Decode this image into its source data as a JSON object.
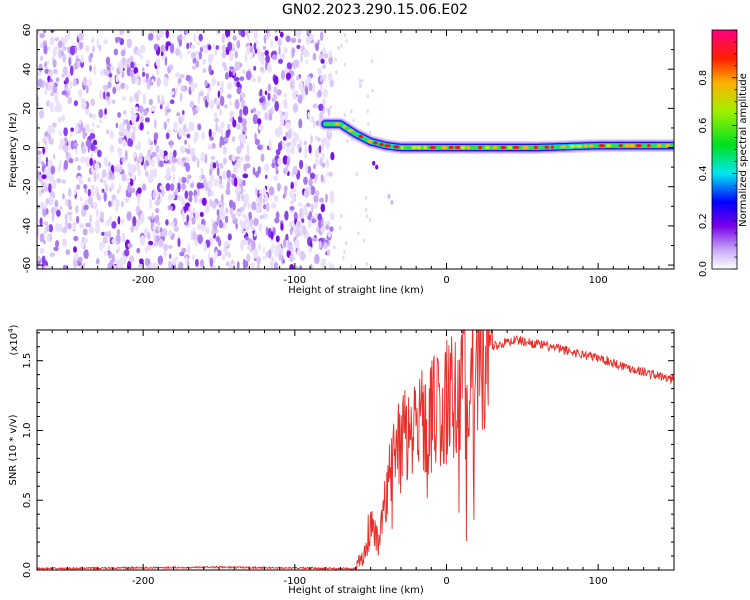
{
  "title": "GN02.2023.290.15.06.E02",
  "colors": {
    "snr_line": "#e8302a",
    "axis": "#000000"
  },
  "chart_data": [
    {
      "type": "heatmap",
      "name": "spectrogram",
      "xlabel": "Height of straight line (km)",
      "ylabel": "Frequency (Hz)",
      "xlim": [
        -270,
        150
      ],
      "ylim": [
        -62,
        60
      ],
      "x_ticks": [
        -200,
        -100,
        0,
        100
      ],
      "y_ticks": [
        -60,
        -40,
        -20,
        0,
        20,
        40,
        60
      ],
      "noise_region_x": [
        -270,
        -75
      ],
      "signal_track": [
        {
          "x": -80,
          "y": 12
        },
        {
          "x": -70,
          "y": 12
        },
        {
          "x": -60,
          "y": 7
        },
        {
          "x": -50,
          "y": 3
        },
        {
          "x": -40,
          "y": 1
        },
        {
          "x": -30,
          "y": 0
        },
        {
          "x": -20,
          "y": 0
        },
        {
          "x": 0,
          "y": 0
        },
        {
          "x": 20,
          "y": 0
        },
        {
          "x": 60,
          "y": 0
        },
        {
          "x": 100,
          "y": 1
        },
        {
          "x": 150,
          "y": 1
        }
      ],
      "colorbar": {
        "label": "Normalized spectral amplitude",
        "range": [
          0.0,
          1.0
        ],
        "ticks": [
          "0.0",
          "0.2",
          "0.4",
          "0.6",
          "0.8"
        ],
        "tick_values": [
          0.0,
          0.2,
          0.4,
          0.6,
          0.8
        ]
      }
    },
    {
      "type": "line",
      "name": "snr",
      "xlabel": "Height of straight line (km)",
      "ylabel": "SNR (10 * v/v)",
      "y_multiplier": "(x10",
      "y_multiplier_exp": "4",
      "y_multiplier_close": ")",
      "xlim": [
        -270,
        150
      ],
      "ylim": [
        0,
        1.72
      ],
      "x_ticks": [
        -200,
        -100,
        0,
        100
      ],
      "y_ticks": [
        "0.0",
        "0.5",
        "1.0",
        "1.5"
      ],
      "y_tick_values": [
        0.0,
        0.5,
        1.0,
        1.5
      ],
      "series_envelope": [
        {
          "x": -270,
          "y": 0.01
        },
        {
          "x": -150,
          "y": 0.02
        },
        {
          "x": -60,
          "y": 0.01
        },
        {
          "x": -55,
          "y": 0.1
        },
        {
          "x": -50,
          "y": 0.3
        },
        {
          "x": -45,
          "y": 0.2
        },
        {
          "x": -40,
          "y": 0.5
        },
        {
          "x": -35,
          "y": 0.8
        },
        {
          "x": -30,
          "y": 0.9
        },
        {
          "x": -20,
          "y": 1.0
        },
        {
          "x": -10,
          "y": 1.1
        },
        {
          "x": 0,
          "y": 1.2
        },
        {
          "x": 10,
          "y": 1.35
        },
        {
          "x": 20,
          "y": 1.5
        },
        {
          "x": 30,
          "y": 1.6
        },
        {
          "x": 45,
          "y": 1.65
        },
        {
          "x": 60,
          "y": 1.62
        },
        {
          "x": 80,
          "y": 1.57
        },
        {
          "x": 100,
          "y": 1.52
        },
        {
          "x": 120,
          "y": 1.45
        },
        {
          "x": 150,
          "y": 1.36
        }
      ]
    }
  ]
}
